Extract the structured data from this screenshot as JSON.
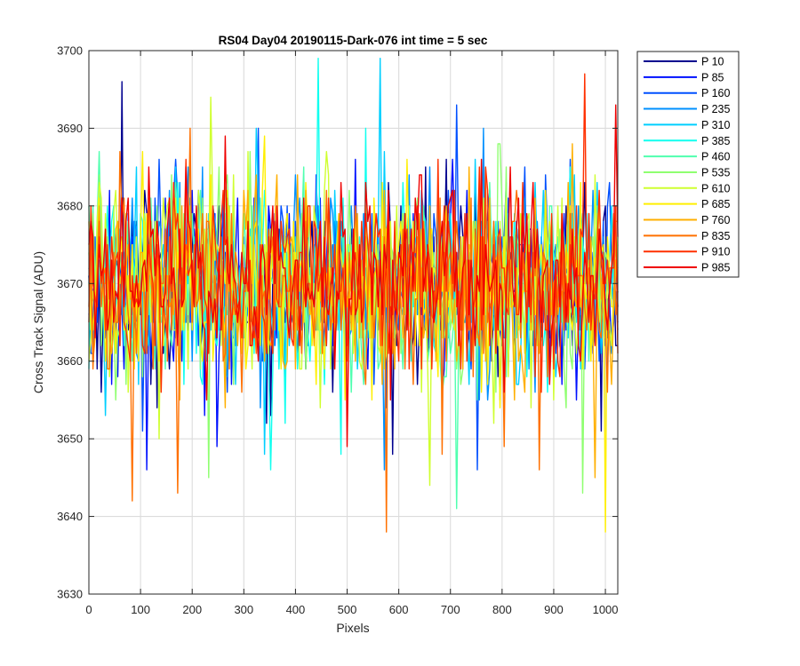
{
  "chart_data": {
    "type": "line",
    "title": "RS04 Day04 20190115-Dark-076 int time = 5 sec",
    "xlabel": "Pixels",
    "ylabel": "Cross Track Signal (ADU)",
    "xlim": [
      0,
      1024
    ],
    "ylim": [
      3630,
      3700
    ],
    "x_ticks": [
      0,
      100,
      200,
      300,
      400,
      500,
      600,
      700,
      800,
      900,
      1000
    ],
    "y_ticks": [
      3630,
      3640,
      3650,
      3660,
      3670,
      3680,
      3690,
      3700
    ],
    "grid": true,
    "legend_position": "outside-top-right",
    "noise_model": {
      "x_start": 0,
      "x_end": 1024,
      "x_step": 4,
      "mean": 3670,
      "sd": 6.2
    },
    "series": [
      {
        "name": "P 10",
        "color": "#00008f",
        "mean": 3669.5,
        "extremes": [
          {
            "x": 65,
            "y": 3696
          }
        ]
      },
      {
        "name": "P 85",
        "color": "#0010ff",
        "mean": 3670.0,
        "extremes": [
          {
            "x": 110,
            "y": 3646
          },
          {
            "x": 247,
            "y": 3649
          }
        ]
      },
      {
        "name": "P 160",
        "color": "#0050ff",
        "mean": 3670.0,
        "extremes": [
          {
            "x": 710,
            "y": 3693
          },
          {
            "x": 753,
            "y": 3646
          }
        ]
      },
      {
        "name": "P 235",
        "color": "#0090ff",
        "mean": 3670.0,
        "extremes": [
          {
            "x": 572,
            "y": 3646
          }
        ]
      },
      {
        "name": "P 310",
        "color": "#00cfff",
        "mean": 3670.2,
        "extremes": [
          {
            "x": 565,
            "y": 3699
          },
          {
            "x": 340,
            "y": 3648
          }
        ]
      },
      {
        "name": "P 385",
        "color": "#10ffef",
        "mean": 3670.0,
        "extremes": [
          {
            "x": 445,
            "y": 3699
          },
          {
            "x": 350,
            "y": 3646
          }
        ]
      },
      {
        "name": "P 460",
        "color": "#50ffaf",
        "mean": 3670.0,
        "extremes": [
          {
            "x": 712,
            "y": 3641
          }
        ]
      },
      {
        "name": "P 535",
        "color": "#8fff70",
        "mean": 3670.0,
        "extremes": [
          {
            "x": 232,
            "y": 3645
          },
          {
            "x": 955,
            "y": 3643
          }
        ]
      },
      {
        "name": "P 610",
        "color": "#cfff30",
        "mean": 3670.0,
        "extremes": [
          {
            "x": 234,
            "y": 3694
          },
          {
            "x": 660,
            "y": 3644
          }
        ]
      },
      {
        "name": "P 685",
        "color": "#ffef00",
        "mean": 3670.0,
        "extremes": [
          {
            "x": 1000,
            "y": 3638
          }
        ]
      },
      {
        "name": "P 760",
        "color": "#ffaf00",
        "mean": 3670.0,
        "extremes": [
          {
            "x": 980,
            "y": 3645
          }
        ]
      },
      {
        "name": "P 835",
        "color": "#ff7000",
        "mean": 3670.0,
        "extremes": [
          {
            "x": 85,
            "y": 3642
          },
          {
            "x": 577,
            "y": 3638
          },
          {
            "x": 172,
            "y": 3643
          }
        ]
      },
      {
        "name": "P 910",
        "color": "#ff3000",
        "mean": 3670.0,
        "extremes": [
          {
            "x": 958,
            "y": 3697
          }
        ]
      },
      {
        "name": "P 985",
        "color": "#ef0000",
        "mean": 3670.5,
        "extremes": [
          {
            "x": 1020,
            "y": 3693
          },
          {
            "x": 500,
            "y": 3649
          }
        ]
      }
    ]
  }
}
